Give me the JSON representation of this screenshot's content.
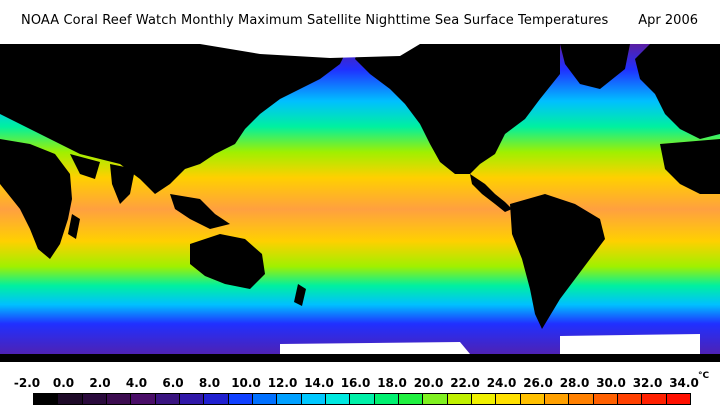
{
  "header": {
    "title": "NOAA Coral Reef Watch Monthly Maximum Satellite Nighttime Sea Surface Temperatures",
    "date": "Apr 2006"
  },
  "legend": {
    "ticks": [
      "-2.0",
      "0.0",
      "2.0",
      "4.0",
      "6.0",
      "8.0",
      "10.0",
      "12.0",
      "14.0",
      "16.0",
      "18.0",
      "20.0",
      "22.0",
      "24.0",
      "26.0",
      "28.0",
      "30.0",
      "32.0",
      "34.0"
    ],
    "unit": "°C",
    "colors": [
      "#000000",
      "#1e0a28",
      "#2a0a3c",
      "#3c0c50",
      "#4a0e68",
      "#3a1480",
      "#3018a8",
      "#2020d0",
      "#1040ff",
      "#0070ff",
      "#00a0ff",
      "#00c8ff",
      "#00e8e0",
      "#00f0a8",
      "#00f070",
      "#20f040",
      "#80f020",
      "#c0f000",
      "#f0f000",
      "#ffe000",
      "#ffc000",
      "#ffa000",
      "#ff8000",
      "#ff6000",
      "#ff4000",
      "#ff2000",
      "#ff1000"
    ]
  },
  "map": {
    "land_color": "#000000",
    "ice_color": "#ffffff",
    "palette": {
      "polar": "#5a1ea0",
      "cold": "#2030ff",
      "cool": "#00c0ff",
      "mild": "#00f0a0",
      "warm": "#a0f000",
      "hot": "#ffd000",
      "hottest": "#ffa040"
    }
  }
}
